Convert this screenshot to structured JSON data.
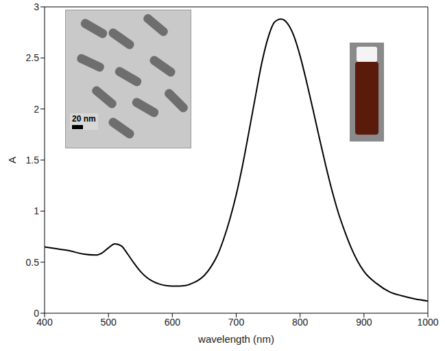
{
  "chart_data": {
    "type": "line",
    "x_label": "wavelength (nm)",
    "y_label": "A",
    "annotations": [
      "20 nm"
    ],
    "x": [
      400,
      420,
      440,
      460,
      480,
      490,
      500,
      510,
      520,
      530,
      540,
      550,
      560,
      570,
      580,
      590,
      600,
      610,
      620,
      630,
      640,
      650,
      660,
      670,
      680,
      690,
      700,
      710,
      720,
      730,
      740,
      750,
      760,
      770,
      780,
      790,
      800,
      810,
      820,
      830,
      840,
      850,
      860,
      870,
      880,
      890,
      900,
      920,
      940,
      960,
      980,
      1000
    ],
    "values": [
      0.65,
      0.63,
      0.61,
      0.58,
      0.57,
      0.59,
      0.64,
      0.68,
      0.66,
      0.58,
      0.49,
      0.41,
      0.35,
      0.31,
      0.285,
      0.27,
      0.265,
      0.265,
      0.27,
      0.29,
      0.32,
      0.37,
      0.45,
      0.56,
      0.72,
      0.92,
      1.16,
      1.45,
      1.78,
      2.12,
      2.45,
      2.7,
      2.85,
      2.88,
      2.84,
      2.72,
      2.52,
      2.27,
      2.0,
      1.72,
      1.45,
      1.2,
      0.98,
      0.8,
      0.64,
      0.51,
      0.41,
      0.29,
      0.21,
      0.17,
      0.14,
      0.12
    ],
    "color": "#000000",
    "line_style": "solid",
    "marker": "none",
    "xlim": [
      400,
      1000
    ],
    "xticks": [
      400,
      500,
      600,
      700,
      800,
      900,
      1000
    ],
    "ylim": [
      0,
      3
    ],
    "yticks": [
      0,
      0.5,
      1,
      1.5,
      2,
      2.5,
      3
    ],
    "grid": false
  }
}
